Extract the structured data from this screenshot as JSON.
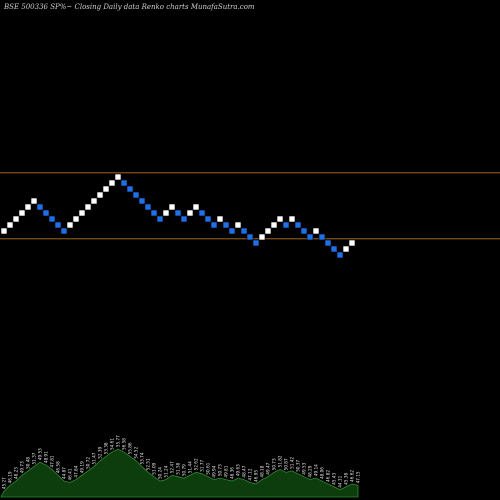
{
  "title": "BSE 500336  SP%~  Closing Daily data  Renko  charts MunafaSutra.com",
  "colors": {
    "background": "#000000",
    "up_brick": "#ffffff",
    "down_brick": "#1f6fe8",
    "level_line": "#b8741e",
    "volume_fill": "#0d3d0d",
    "volume_line": "#2e8b2e"
  },
  "chart_data": {
    "type": "renko",
    "title": "BSE 500336  SP%~  Closing Daily data  Renko  charts MunafaSutra.com",
    "y_range": [
      0,
      27
    ],
    "level_lines": [
      17.2,
      6.2
    ],
    "bricks": [
      {
        "dir": "up",
        "level": 7
      },
      {
        "dir": "up",
        "level": 8
      },
      {
        "dir": "up",
        "level": 9
      },
      {
        "dir": "up",
        "level": 10
      },
      {
        "dir": "up",
        "level": 11
      },
      {
        "dir": "up",
        "level": 12
      },
      {
        "dir": "down",
        "level": 11
      },
      {
        "dir": "down",
        "level": 10
      },
      {
        "dir": "down",
        "level": 9
      },
      {
        "dir": "down",
        "level": 8
      },
      {
        "dir": "down",
        "level": 7
      },
      {
        "dir": "up",
        "level": 8
      },
      {
        "dir": "up",
        "level": 9
      },
      {
        "dir": "up",
        "level": 10
      },
      {
        "dir": "up",
        "level": 11
      },
      {
        "dir": "up",
        "level": 12
      },
      {
        "dir": "up",
        "level": 13
      },
      {
        "dir": "up",
        "level": 14
      },
      {
        "dir": "up",
        "level": 15
      },
      {
        "dir": "up",
        "level": 16
      },
      {
        "dir": "down",
        "level": 15
      },
      {
        "dir": "down",
        "level": 14
      },
      {
        "dir": "down",
        "level": 13
      },
      {
        "dir": "down",
        "level": 12
      },
      {
        "dir": "down",
        "level": 11
      },
      {
        "dir": "down",
        "level": 10
      },
      {
        "dir": "down",
        "level": 9
      },
      {
        "dir": "up",
        "level": 10
      },
      {
        "dir": "up",
        "level": 11
      },
      {
        "dir": "down",
        "level": 10
      },
      {
        "dir": "down",
        "level": 9
      },
      {
        "dir": "up",
        "level": 10
      },
      {
        "dir": "up",
        "level": 11
      },
      {
        "dir": "down",
        "level": 10
      },
      {
        "dir": "down",
        "level": 9
      },
      {
        "dir": "down",
        "level": 8
      },
      {
        "dir": "up",
        "level": 9
      },
      {
        "dir": "down",
        "level": 8
      },
      {
        "dir": "down",
        "level": 7
      },
      {
        "dir": "up",
        "level": 8
      },
      {
        "dir": "down",
        "level": 7
      },
      {
        "dir": "down",
        "level": 6
      },
      {
        "dir": "down",
        "level": 5
      },
      {
        "dir": "up",
        "level": 6
      },
      {
        "dir": "up",
        "level": 7
      },
      {
        "dir": "up",
        "level": 8
      },
      {
        "dir": "up",
        "level": 9
      },
      {
        "dir": "down",
        "level": 8
      },
      {
        "dir": "up",
        "level": 9
      },
      {
        "dir": "down",
        "level": 8
      },
      {
        "dir": "down",
        "level": 7
      },
      {
        "dir": "down",
        "level": 6
      },
      {
        "dir": "up",
        "level": 7
      },
      {
        "dir": "down",
        "level": 6
      },
      {
        "dir": "down",
        "level": 5
      },
      {
        "dir": "down",
        "level": 4
      },
      {
        "dir": "down",
        "level": 3
      },
      {
        "dir": "up",
        "level": 4
      },
      {
        "dir": "up",
        "level": 5
      }
    ],
    "volume_profile": [
      4,
      8,
      11,
      15,
      18,
      21,
      24,
      22,
      19,
      15,
      11,
      10,
      12,
      15,
      18,
      21,
      25,
      28,
      31,
      33,
      31,
      28,
      25,
      21,
      17,
      14,
      11,
      12,
      15,
      14,
      13,
      15,
      17,
      16,
      14,
      12,
      13,
      12,
      11,
      13,
      12,
      10,
      9,
      12,
      14,
      17,
      19,
      17,
      18,
      16,
      14,
      12,
      13,
      11,
      9,
      7,
      5,
      7,
      9,
      8
    ],
    "volume_labels": [
      "45.27",
      "46.19",
      "48.23",
      "49.73",
      "50.48",
      "51.37",
      "49.53",
      "48.91",
      "47.81",
      "46.58",
      "44.87",
      "46.41",
      "47.84",
      "49.19",
      "50.72",
      "51.47",
      "52.39",
      "53.38",
      "54.61",
      "55.77",
      "56.58",
      "55.86",
      "54.52",
      "53.74",
      "52.51",
      "51.09",
      "50.24",
      "51.24",
      "52.47",
      "51.58",
      "50.79",
      "51.44",
      "52.62",
      "51.77",
      "50.61",
      "49.94",
      "50.73",
      "49.81",
      "48.36",
      "49.63",
      "48.47",
      "47.12",
      "46.95",
      "48.18",
      "49.47",
      "50.73",
      "51.82",
      "50.87",
      "51.42",
      "50.37",
      "49.53",
      "48.29",
      "49.14",
      "48.06",
      "46.82",
      "45.43",
      "44.31",
      "45.38",
      "46.62",
      "47.15"
    ]
  }
}
